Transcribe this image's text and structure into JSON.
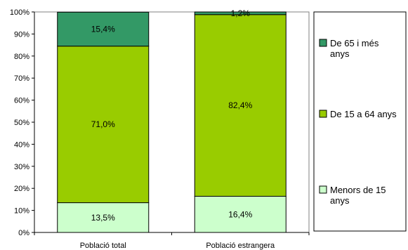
{
  "chart_data": {
    "type": "bar",
    "stacked": true,
    "percent": true,
    "categories": [
      "Població total",
      "Població estrangera"
    ],
    "series": [
      {
        "name": "Menors de 15 anys",
        "legend_lines": [
          "Menors de 15",
          "anys"
        ],
        "values": [
          13.5,
          16.4
        ],
        "labels": [
          "13,5%",
          "16,4%"
        ],
        "color": "#CCFFCC"
      },
      {
        "name": "De 15 a 64 anys",
        "legend_lines": [
          "De 15 a 64 anys"
        ],
        "values": [
          71.0,
          82.4
        ],
        "labels": [
          "71,0%",
          "82,4%"
        ],
        "color": "#99CC00"
      },
      {
        "name": "De 65 i més anys",
        "legend_lines": [
          "De 65 i més",
          "anys"
        ],
        "values": [
          15.4,
          1.2
        ],
        "labels": [
          "15,4%",
          "1,2%"
        ],
        "color": "#339966"
      }
    ],
    "ylim": [
      0,
      100
    ],
    "y_ticks": [
      "0%",
      "10%",
      "20%",
      "30%",
      "40%",
      "50%",
      "60%",
      "70%",
      "80%",
      "90%",
      "100%"
    ],
    "legend_position": "right",
    "grid": false
  }
}
